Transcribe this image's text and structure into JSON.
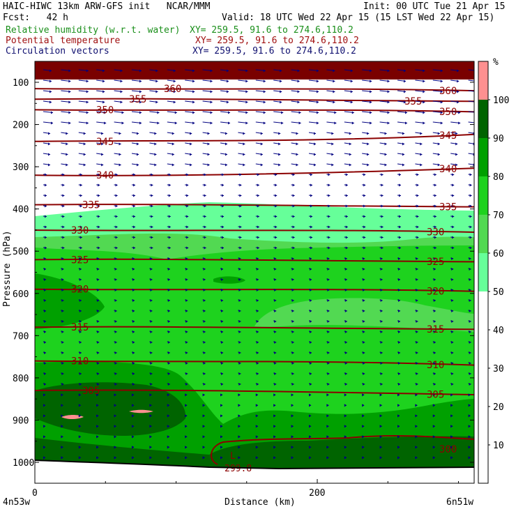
{
  "header": {
    "model_line": "HAIC-HIWC 13km ARW-GFS init   NCAR/MMM",
    "init_line": "Init: 00 UTC Tue 21 Apr 15",
    "fcst_line": "Fcst:   42 h",
    "valid_line": "Valid: 18 UTC Wed 22 Apr 15 (15 LST Wed 22 Apr 15)",
    "field1_name": "Relative humidity (w.r.t. water)",
    "field1_xy": "XY= 259.5, 91.6 to 274.6,110.2",
    "field2_name": "Potential temperature",
    "field2_xy": "XY= 259.5, 91.6 to 274.6,110.2",
    "field3_name": "Circulation vectors",
    "field3_xy": "XY= 259.5, 91.6 to 274.6,110.2"
  },
  "colors": {
    "rh_100": "#006400",
    "rh_90": "#00a000",
    "rh_80": "#1ed21e",
    "rh_70": "#52d952",
    "rh_60": "#66ff99",
    "rh_50": "#ffffff",
    "theta_contour": "#8b0000",
    "vectors": "#000080",
    "cb_top": "#ff9090"
  },
  "chart_data": {
    "type": "heatmap",
    "title": "Relative humidity (w.r.t. water) / Potential temperature / Circulation vectors",
    "xlabel": "Distance (km)",
    "ylabel": "Pressure (hPa)",
    "x_ticks": [
      "0",
      "200"
    ],
    "y_ticks": [
      "100",
      "200",
      "300",
      "400",
      "500",
      "600",
      "700",
      "800",
      "900",
      "1000"
    ],
    "xlim": [
      0,
      310
    ],
    "ylim": [
      1050,
      50
    ],
    "x_endpoints": {
      "left": "4n53w",
      "right": "6n51w"
    },
    "colorbar": {
      "unit": "%",
      "labels": [
        "10",
        "20",
        "30",
        "40",
        "50",
        "60",
        "70",
        "80",
        "90",
        "100"
      ]
    },
    "theta_contours": [
      {
        "value": 360,
        "p": 115
      },
      {
        "value": 355,
        "p": 140
      },
      {
        "value": 350,
        "p": 165
      },
      {
        "value": 345,
        "p": 240
      },
      {
        "value": 340,
        "p": 320
      },
      {
        "value": 335,
        "p": 390
      },
      {
        "value": 330,
        "p": 450
      },
      {
        "value": 325,
        "p": 520
      },
      {
        "value": 320,
        "p": 590
      },
      {
        "value": 315,
        "p": 680
      },
      {
        "value": 310,
        "p": 760
      },
      {
        "value": 305,
        "p": 830
      },
      {
        "value": 300,
        "p": 960
      }
    ],
    "theta_labels_left": [
      "360",
      "355",
      "350",
      "345",
      "340",
      "335",
      "330",
      "325",
      "320",
      "315",
      "310",
      "305"
    ],
    "theta_labels_right": [
      "360",
      "355",
      "350",
      "345",
      "340",
      "335",
      "330",
      "325",
      "320",
      "315",
      "310",
      "305",
      "300"
    ],
    "min_label": "L",
    "min_value": "299.8",
    "grid": false
  }
}
